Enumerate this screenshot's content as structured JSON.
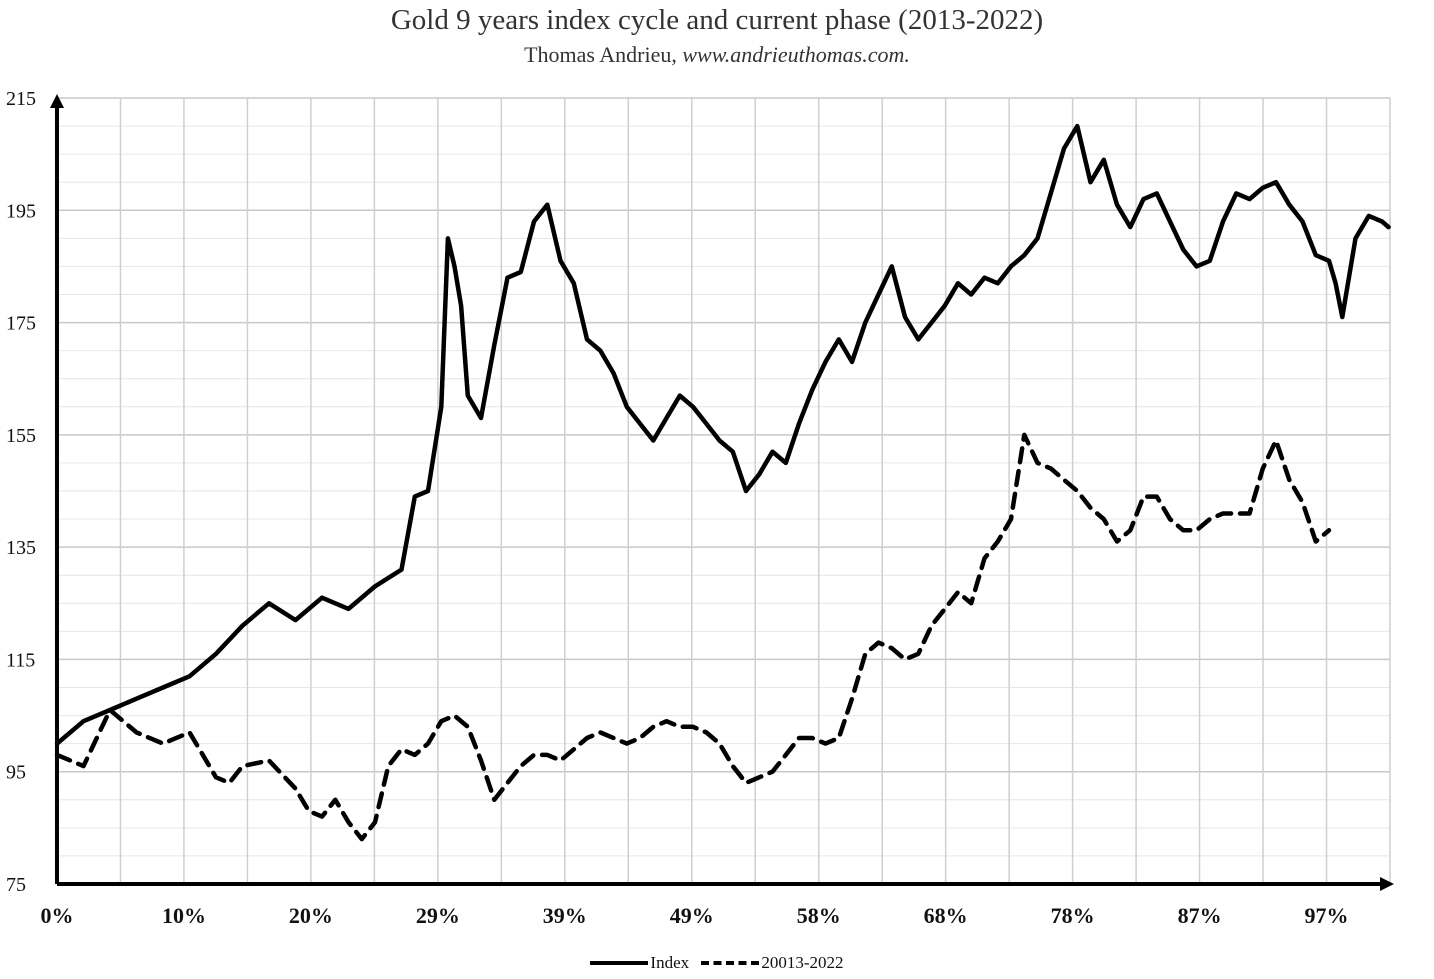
{
  "chart_data": {
    "type": "line",
    "title": "Gold 9 years index cycle and current phase (2013-2022)",
    "subtitle_author": "Thomas Andrieu,",
    "subtitle_site": "www.andrieuthomas.com.",
    "xlabel": "",
    "ylabel": "",
    "ylim": [
      75,
      215
    ],
    "yticks": [
      "215",
      "195",
      "175",
      "155",
      "135",
      "115",
      "95",
      "75"
    ],
    "xticks": [
      "0%",
      "10%",
      "20%",
      "29%",
      "39%",
      "49%",
      "58%",
      "68%",
      "78%",
      "87%",
      "97%"
    ],
    "grid": true,
    "legend_position": "bottom",
    "series": [
      {
        "name": "Index",
        "style": "solid",
        "color": "#000000",
        "x": [
          0,
          2,
          4,
          6,
          8,
          10,
          12,
          14,
          16,
          18,
          20,
          22,
          24,
          26,
          27,
          28,
          29,
          29.5,
          30,
          30.5,
          31,
          32,
          33,
          34,
          35,
          36,
          37,
          38,
          39,
          40,
          41,
          42,
          43,
          44,
          45,
          46,
          47,
          48,
          49,
          50,
          51,
          52,
          53,
          54,
          55,
          56,
          57,
          58,
          59,
          60,
          61,
          62,
          63,
          64,
          65,
          66,
          67,
          68,
          69,
          70,
          71,
          72,
          73,
          74,
          75,
          76,
          77,
          78,
          79,
          80,
          81,
          82,
          83,
          84,
          85,
          86,
          87,
          88,
          89,
          90,
          91,
          92,
          93,
          94,
          95,
          96,
          96.5,
          97,
          98,
          99,
          100,
          100.5
        ],
        "values": [
          100,
          104,
          106,
          108,
          110,
          112,
          116,
          121,
          125,
          122,
          126,
          124,
          128,
          131,
          144,
          145,
          160,
          190,
          185,
          178,
          162,
          158,
          171,
          183,
          184,
          193,
          196,
          186,
          182,
          172,
          170,
          166,
          160,
          157,
          154,
          158,
          162,
          160,
          157,
          154,
          152,
          145,
          148,
          152,
          150,
          157,
          163,
          168,
          172,
          168,
          175,
          180,
          185,
          176,
          172,
          175,
          178,
          182,
          180,
          183,
          182,
          185,
          187,
          190,
          198,
          206,
          210,
          200,
          204,
          196,
          192,
          197,
          198,
          193,
          188,
          185,
          186,
          193,
          198,
          197,
          199,
          200,
          196,
          193,
          187,
          186,
          182,
          176,
          190,
          194,
          193,
          192
        ],
        "_x_end": 100
      },
      {
        "name": "20013-2022",
        "style": "dashed",
        "color": "#000000",
        "x": [
          0,
          2,
          4,
          6,
          8,
          10,
          11,
          12,
          13,
          14,
          16,
          18,
          19,
          20,
          21,
          22,
          23,
          24,
          25,
          26,
          27,
          28,
          29,
          30,
          31,
          32,
          33,
          34,
          35,
          36,
          37,
          38,
          39,
          40,
          41,
          42,
          43,
          44,
          45,
          46,
          47,
          48,
          49,
          50,
          51,
          52,
          53,
          54,
          55,
          56,
          57,
          58,
          59,
          60,
          61,
          62,
          63,
          64,
          65,
          66,
          67,
          68,
          69,
          70,
          71,
          72,
          73,
          74,
          75,
          76,
          77,
          78,
          79,
          80,
          81,
          82,
          83,
          84,
          85,
          86,
          87,
          88,
          89,
          90,
          91,
          92,
          93,
          94,
          95,
          96
        ],
        "values": [
          98,
          96,
          106,
          102,
          100,
          102,
          98,
          94,
          93,
          96,
          97,
          92,
          88,
          87,
          90,
          86,
          83,
          86,
          96,
          99,
          98,
          100,
          104,
          105,
          103,
          97,
          90,
          93,
          96,
          98,
          98,
          97,
          99,
          101,
          102,
          101,
          100,
          101,
          103,
          104,
          103,
          103,
          102,
          100,
          96,
          93,
          94,
          95,
          98,
          101,
          101,
          100,
          101,
          108,
          116,
          118,
          117,
          115,
          116,
          121,
          124,
          127,
          125,
          133,
          136,
          140,
          155,
          150,
          149,
          147,
          145,
          142,
          140,
          136,
          138,
          144,
          144,
          140,
          138,
          138,
          140,
          141,
          141,
          141,
          149,
          154,
          147,
          143,
          136,
          138
        ]
      }
    ]
  }
}
